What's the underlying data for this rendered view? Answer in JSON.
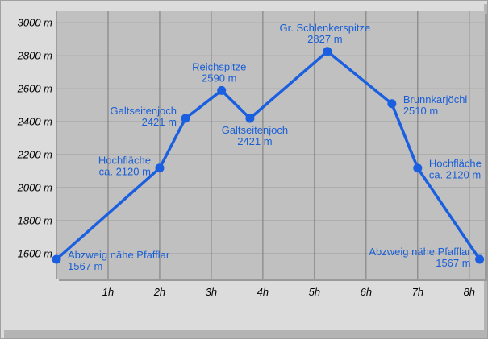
{
  "chart_data": {
    "type": "line",
    "title": "",
    "xlabel": "",
    "ylabel": "",
    "xlim": [
      0,
      8.3
    ],
    "ylim": [
      1450,
      3070
    ],
    "grid": true,
    "x_tick_labels": [
      "1h",
      "2h",
      "3h",
      "4h",
      "5h",
      "6h",
      "7h",
      "8h"
    ],
    "x_ticks": [
      1,
      2,
      3,
      4,
      5,
      6,
      7,
      8
    ],
    "y_tick_labels": [
      "1600 m",
      "1800 m",
      "2000 m",
      "2200 m",
      "2400 m",
      "2600 m",
      "2800 m",
      "3000 m"
    ],
    "y_ticks": [
      1600,
      1800,
      2000,
      2200,
      2400,
      2600,
      2800,
      3000
    ],
    "series": [
      {
        "color": "#1a5fe0",
        "points": [
          {
            "x": 0.0,
            "y": 1567,
            "name": "Abzweig nähe Pfafflar",
            "value_label": "1567 m",
            "anchor": "start"
          },
          {
            "x": 2.0,
            "y": 2120,
            "name": "Hochfläche",
            "value_label": "ca. 2120 m",
            "anchor": "end"
          },
          {
            "x": 2.5,
            "y": 2421,
            "name": "Galtseitenjoch",
            "value_label": "2421 m",
            "anchor": "end"
          },
          {
            "x": 3.2,
            "y": 2590,
            "name": "Reichspitze",
            "value_label": "2590 m",
            "anchor": "middle"
          },
          {
            "x": 3.75,
            "y": 2421,
            "name": "Galtseitenjoch",
            "value_label": "2421 m",
            "anchor": "middle-below"
          },
          {
            "x": 5.25,
            "y": 2827,
            "name": "Gr. Schlenkerspitze",
            "value_label": "2827 m",
            "anchor": "middle"
          },
          {
            "x": 6.5,
            "y": 2510,
            "name": "Brunnkarjöchl",
            "value_label": "2510 m",
            "anchor": "start"
          },
          {
            "x": 7.0,
            "y": 2120,
            "name": "Hochfläche",
            "value_label": "ca. 2120 m",
            "anchor": "start"
          },
          {
            "x": 8.2,
            "y": 1567,
            "name": "Abzweig nähe Pfafflar",
            "value_label": "1567 m",
            "anchor": "end"
          }
        ]
      }
    ]
  }
}
